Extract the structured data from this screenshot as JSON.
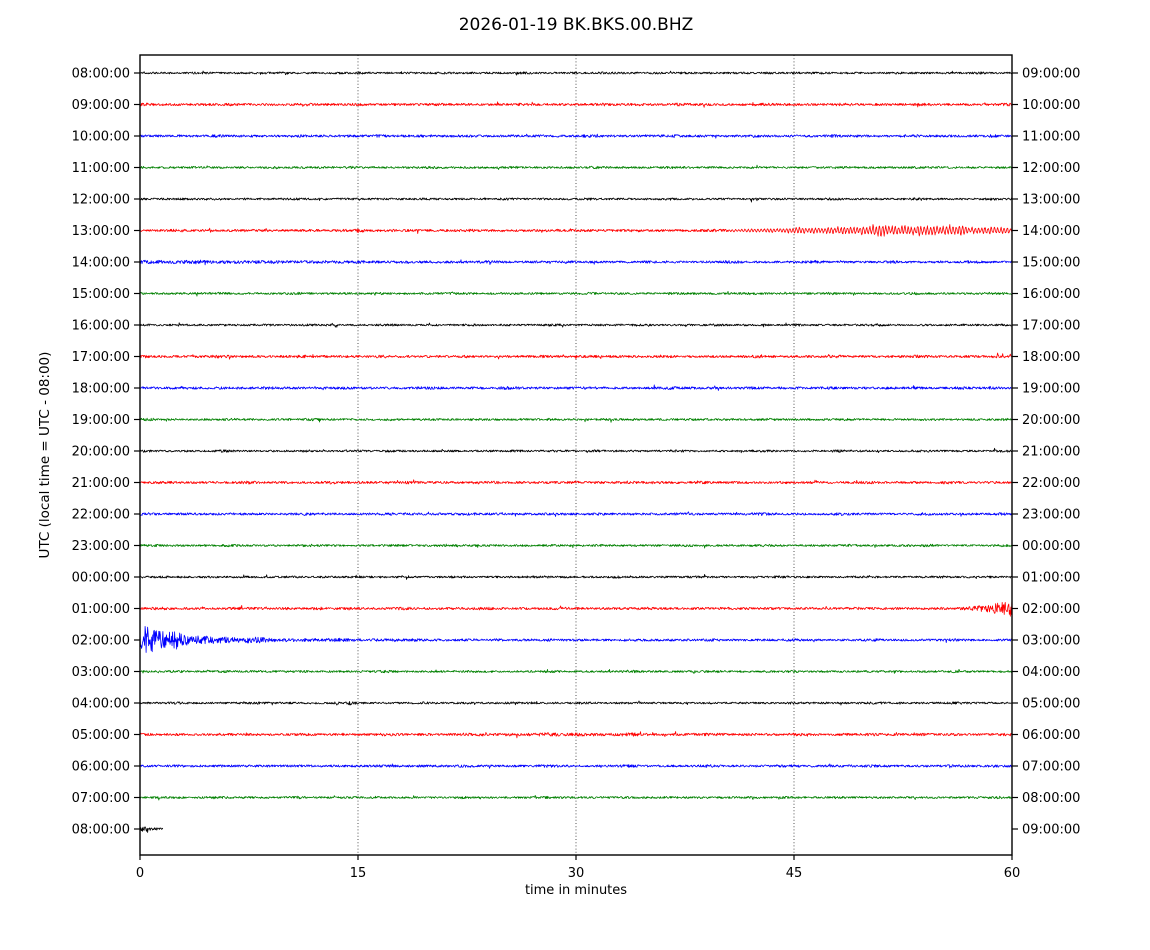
{
  "chart_data": {
    "type": "line",
    "subtype": "helicorder-seismogram-dayplot",
    "title": "2026-01-19 BK.BKS.00.BHZ",
    "xlabel": "time in minutes",
    "ylabel": "UTC (local time = UTC - 08:00)",
    "x_range": [
      0,
      60
    ],
    "x_ticks": [
      0,
      15,
      30,
      45,
      60
    ],
    "grid_minutes": [
      15,
      30,
      45
    ],
    "grid_style": "vertical dotted black",
    "background": "#ffffff",
    "colors": {
      "black": "#000000",
      "red": "#ff0000",
      "blue": "#0000ff",
      "green": "#008000"
    },
    "color_cycle": [
      "black",
      "red",
      "blue",
      "green"
    ],
    "events_visible": [
      "13:00 UTC row: small impulse near minute 15, emergent oscillatory wavetrain growing from minute ~40 and peaking near minutes 50-55, continuing to end of row",
      "14:00 UTC row: slightly elevated decaying coda over first ~20 minutes",
      "01:00 UTC row: burst growing rapidly from minute ~57 to the right edge",
      "02:00 UTC row: very large burst at minutes 0-2 decaying back to background by ~minute 12",
      "04:00 UTC row: tiny blip near minute 14.5",
      "05:00 UTC row: mild noise swell around minutes 26-34",
      "08:00 UTC last row: trace ends after ~1.6 minutes"
    ],
    "rows": [
      {
        "utc": "08:00:00",
        "local_end": "09:00:00",
        "color": "black",
        "envelope": [
          [
            0,
            0.95
          ],
          [
            60,
            0.95
          ]
        ]
      },
      {
        "utc": "09:00:00",
        "local_end": "10:00:00",
        "color": "red",
        "envelope": [
          [
            0,
            1.15
          ],
          [
            60,
            1.15
          ]
        ]
      },
      {
        "utc": "10:00:00",
        "local_end": "11:00:00",
        "color": "blue",
        "envelope": [
          [
            0,
            1.15
          ],
          [
            60,
            1.15
          ]
        ]
      },
      {
        "utc": "11:00:00",
        "local_end": "12:00:00",
        "color": "green",
        "envelope": [
          [
            0,
            1.0
          ],
          [
            60,
            1.0
          ]
        ]
      },
      {
        "utc": "12:00:00",
        "local_end": "13:00:00",
        "color": "black",
        "envelope": [
          [
            0,
            0.95
          ],
          [
            60,
            0.95
          ]
        ]
      },
      {
        "utc": "13:00:00",
        "local_end": "14:00:00",
        "color": "red",
        "envelope": [
          [
            0,
            1.1
          ],
          [
            14.6,
            1.1
          ],
          [
            15,
            2.9
          ],
          [
            15.5,
            1.15
          ],
          [
            40,
            1.15
          ],
          [
            43,
            1.7
          ],
          [
            46,
            2.3
          ],
          [
            49,
            3.3
          ],
          [
            51,
            4.3
          ],
          [
            53,
            4.7
          ],
          [
            54.5,
            4.3
          ],
          [
            56,
            3.7
          ],
          [
            58,
            3.3
          ],
          [
            60,
            3.0
          ]
        ],
        "osc": {
          "start": 40.5,
          "end": 60,
          "period": 0.22
        }
      },
      {
        "utc": "14:00:00",
        "local_end": "15:00:00",
        "color": "blue",
        "envelope": [
          [
            0,
            1.8
          ],
          [
            3,
            1.7
          ],
          [
            6,
            1.55
          ],
          [
            10,
            1.45
          ],
          [
            14,
            1.35
          ],
          [
            18,
            1.25
          ],
          [
            22,
            1.15
          ],
          [
            30,
            1.1
          ],
          [
            60,
            1.05
          ]
        ]
      },
      {
        "utc": "15:00:00",
        "local_end": "16:00:00",
        "color": "green",
        "envelope": [
          [
            0,
            1.0
          ],
          [
            60,
            1.0
          ]
        ]
      },
      {
        "utc": "16:00:00",
        "local_end": "17:00:00",
        "color": "black",
        "envelope": [
          [
            0,
            0.95
          ],
          [
            60,
            0.95
          ]
        ]
      },
      {
        "utc": "17:00:00",
        "local_end": "18:00:00",
        "color": "red",
        "envelope": [
          [
            0,
            1.15
          ],
          [
            60,
            1.15
          ]
        ]
      },
      {
        "utc": "18:00:00",
        "local_end": "19:00:00",
        "color": "blue",
        "envelope": [
          [
            0,
            1.15
          ],
          [
            60,
            1.15
          ]
        ]
      },
      {
        "utc": "19:00:00",
        "local_end": "20:00:00",
        "color": "green",
        "envelope": [
          [
            0,
            1.0
          ],
          [
            60,
            1.0
          ]
        ]
      },
      {
        "utc": "20:00:00",
        "local_end": "21:00:00",
        "color": "black",
        "envelope": [
          [
            0,
            0.95
          ],
          [
            60,
            0.95
          ]
        ]
      },
      {
        "utc": "21:00:00",
        "local_end": "22:00:00",
        "color": "red",
        "envelope": [
          [
            0,
            1.15
          ],
          [
            60,
            1.15
          ]
        ]
      },
      {
        "utc": "22:00:00",
        "local_end": "23:00:00",
        "color": "blue",
        "envelope": [
          [
            0,
            1.1
          ],
          [
            60,
            1.1
          ]
        ]
      },
      {
        "utc": "23:00:00",
        "local_end": "00:00:00",
        "color": "green",
        "envelope": [
          [
            0,
            1.0
          ],
          [
            60,
            1.0
          ]
        ]
      },
      {
        "utc": "00:00:00",
        "local_end": "01:00:00",
        "color": "black",
        "envelope": [
          [
            0,
            0.95
          ],
          [
            17.7,
            0.95
          ],
          [
            18,
            1.5
          ],
          [
            18.4,
            0.95
          ],
          [
            27.7,
            0.95
          ],
          [
            28,
            1.5
          ],
          [
            28.4,
            0.95
          ],
          [
            60,
            0.95
          ]
        ]
      },
      {
        "utc": "01:00:00",
        "local_end": "02:00:00",
        "color": "red",
        "envelope": [
          [
            0,
            1.15
          ],
          [
            55.8,
            1.15
          ],
          [
            57,
            1.8
          ],
          [
            58,
            3.2
          ],
          [
            58.8,
            5.0
          ],
          [
            59.4,
            6.5
          ],
          [
            60,
            7.5
          ]
        ]
      },
      {
        "utc": "02:00:00",
        "local_end": "03:00:00",
        "color": "blue",
        "envelope": [
          [
            0,
            8
          ],
          [
            0.35,
            14
          ],
          [
            0.8,
            12
          ],
          [
            1.3,
            9.5
          ],
          [
            1.9,
            7.5
          ],
          [
            2.6,
            6
          ],
          [
            3.4,
            5
          ],
          [
            4.2,
            4.2
          ],
          [
            5,
            3.6
          ],
          [
            6,
            3
          ],
          [
            7,
            2.6
          ],
          [
            8.5,
            2.2
          ],
          [
            10,
            1.9
          ],
          [
            12,
            1.6
          ],
          [
            15,
            1.35
          ],
          [
            20,
            1.15
          ],
          [
            60,
            1.05
          ]
        ]
      },
      {
        "utc": "03:00:00",
        "local_end": "04:00:00",
        "color": "green",
        "envelope": [
          [
            0,
            1.0
          ],
          [
            60,
            1.0
          ]
        ]
      },
      {
        "utc": "04:00:00",
        "local_end": "05:00:00",
        "color": "black",
        "envelope": [
          [
            0,
            0.95
          ],
          [
            14.1,
            0.95
          ],
          [
            14.5,
            2.0
          ],
          [
            15,
            0.95
          ],
          [
            60,
            0.95
          ]
        ]
      },
      {
        "utc": "05:00:00",
        "local_end": "06:00:00",
        "color": "red",
        "envelope": [
          [
            0,
            1.15
          ],
          [
            22,
            1.15
          ],
          [
            26,
            1.45
          ],
          [
            30,
            1.65
          ],
          [
            33,
            1.45
          ],
          [
            36,
            1.2
          ],
          [
            60,
            1.15
          ]
        ]
      },
      {
        "utc": "06:00:00",
        "local_end": "07:00:00",
        "color": "blue",
        "envelope": [
          [
            0,
            1.1
          ],
          [
            60,
            1.1
          ]
        ]
      },
      {
        "utc": "07:00:00",
        "local_end": "08:00:00",
        "color": "green",
        "envelope": [
          [
            0,
            1.0
          ],
          [
            60,
            1.0
          ]
        ]
      },
      {
        "utc": "08:00:00",
        "local_end": "09:00:00",
        "color": "black",
        "envelope": [
          [
            0,
            1.3
          ],
          [
            0.25,
            2.1
          ],
          [
            0.6,
            1.5
          ],
          [
            1.2,
            1.1
          ],
          [
            1.6,
            1.0
          ]
        ],
        "end_minute": 1.6
      }
    ]
  }
}
